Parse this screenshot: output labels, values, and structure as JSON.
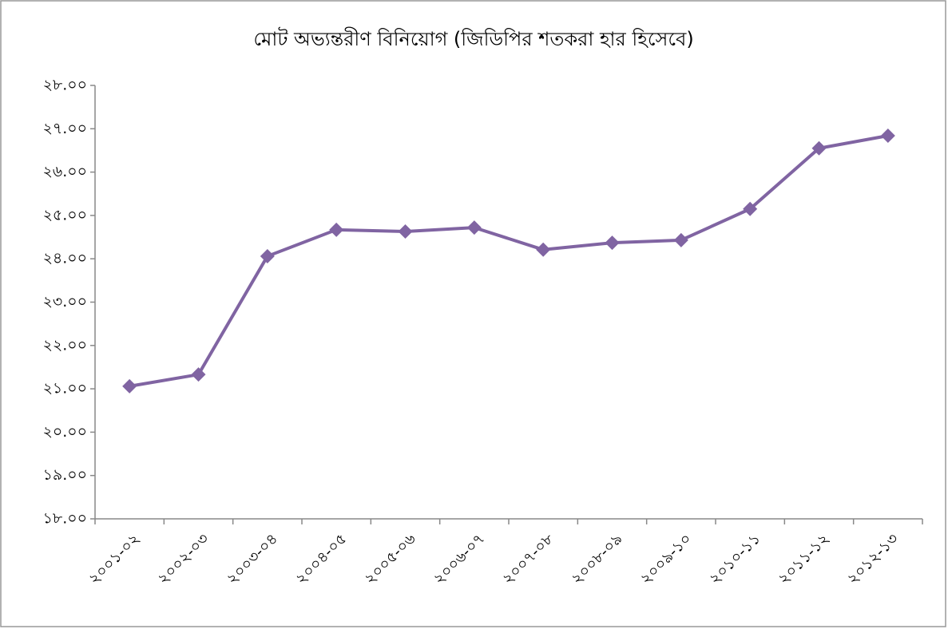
{
  "chart_data": {
    "type": "line",
    "title": "মোট অভ্যন্তরীণ বিনিয়োগ (জিডিপির শতকরা হার হিসেবে)",
    "categories": [
      "২০০১-০২",
      "২০০২-০৩",
      "২০০৩-০৪",
      "২০০৪-০৫",
      "২০০৫-০৬",
      "২০০৬-০৭",
      "২০০৭-০৮",
      "২০০৮-০৯",
      "২০০৯-১০",
      "২০১০-১১",
      "২০১১-১২",
      "২০১২-১৩"
    ],
    "values": [
      21.06,
      21.33,
      24.06,
      24.67,
      24.63,
      24.72,
      24.21,
      24.37,
      24.43,
      25.15,
      26.55,
      26.84
    ],
    "color": "#8064a2",
    "ylim": [
      18,
      28
    ],
    "yticks": [
      {
        "value": 18,
        "label": "১৮.০০"
      },
      {
        "value": 19,
        "label": "১৯.০০"
      },
      {
        "value": 20,
        "label": "২০.০০"
      },
      {
        "value": 21,
        "label": "২১.০০"
      },
      {
        "value": 22,
        "label": "২২.০০"
      },
      {
        "value": 23,
        "label": "২৩.০০"
      },
      {
        "value": 24,
        "label": "২৪.০০"
      },
      {
        "value": 25,
        "label": "২৫.০০"
      },
      {
        "value": 26,
        "label": "২৬.০০"
      },
      {
        "value": 27,
        "label": "২৭.০০"
      },
      {
        "value": 28,
        "label": "২৮.০০"
      }
    ],
    "grid": false
  }
}
